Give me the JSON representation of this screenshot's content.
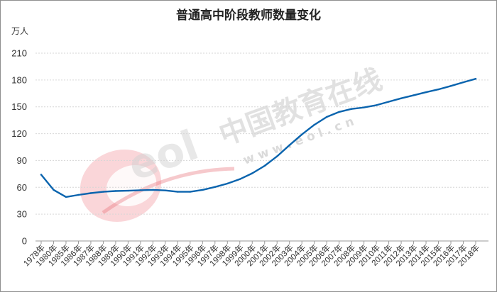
{
  "chart_data": {
    "type": "line",
    "title": "普通高中阶段教师数量变化",
    "ylabel": "万人",
    "xlabel": "",
    "ylim": [
      0,
      210
    ],
    "yticks": [
      0,
      30,
      60,
      90,
      120,
      150,
      180,
      210
    ],
    "grid": true,
    "categories": [
      "1978年",
      "1980年",
      "1985年",
      "1986年",
      "1987年",
      "1988年",
      "1989年",
      "1990年",
      "1991年",
      "1992年",
      "1993年",
      "1994年",
      "1995年",
      "1996年",
      "1997年",
      "1998年",
      "1999年",
      "2000年",
      "2001年",
      "2002年",
      "2003年",
      "2004年",
      "2005年",
      "2006年",
      "2007年",
      "2008年",
      "2009年",
      "2010年",
      "2011年",
      "2012年",
      "2013年",
      "2014年",
      "2015年",
      "2016年",
      "2017年",
      "2018年"
    ],
    "series": [
      {
        "values": [
          74.1,
          57.1,
          49.2,
          51.5,
          53.5,
          55.0,
          55.9,
          56.2,
          56.7,
          57.1,
          56.5,
          55.0,
          55.0,
          57.1,
          60.4,
          64.2,
          69.1,
          75.7,
          84.0,
          94.6,
          107.1,
          119.1,
          129.9,
          138.7,
          144.3,
          147.6,
          149.3,
          151.8,
          155.7,
          159.5,
          162.9,
          166.3,
          169.5,
          173.3,
          177.4,
          181.3
        ]
      }
    ],
    "color": "#0a64ae"
  },
  "watermark": {
    "text": "中国教育在线",
    "url": "w w w . e o l . c n",
    "logo": "eol-logo"
  }
}
